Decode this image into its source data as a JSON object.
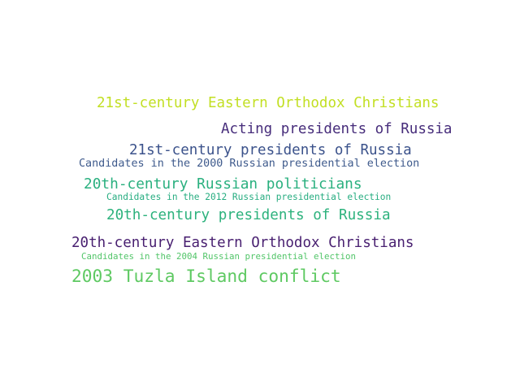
{
  "word_cloud": {
    "words": [
      {
        "text": "21st-century Eastern Orthodox Christians",
        "color": "#c2df23"
      },
      {
        "text": "Acting presidents of Russia",
        "color": "#472d7b"
      },
      {
        "text": "21st-century presidents of Russia",
        "color": "#3b528b"
      },
      {
        "text": "Candidates in the 2000 Russian presidential election",
        "color": "#3e5a8c"
      },
      {
        "text": "20th-century Russian politicians",
        "color": "#2ab07f"
      },
      {
        "text": "Candidates in the 2012 Russian presidential election",
        "color": "#27ad81"
      },
      {
        "text": "20th-century presidents of Russia",
        "color": "#2db27d"
      },
      {
        "text": "20th-century Eastern Orthodox Christians",
        "color": "#481f70"
      },
      {
        "text": "Candidates in the 2004 Russian presidential election",
        "color": "#52c569"
      },
      {
        "text": "2003 Tuzla Island conflict",
        "color": "#5ec962"
      }
    ]
  }
}
